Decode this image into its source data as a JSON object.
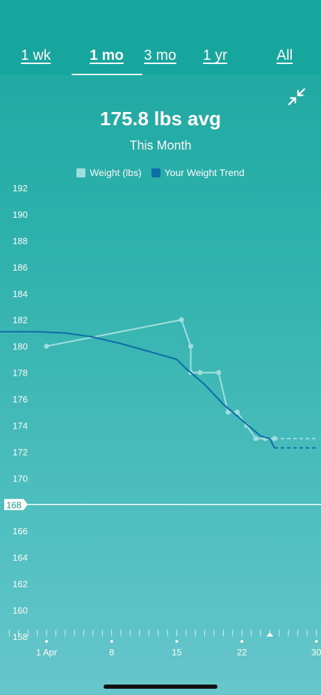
{
  "tabs": [
    {
      "label": "1 wk",
      "active": false
    },
    {
      "label": "1 mo",
      "active": true
    },
    {
      "label": "3 mo",
      "active": false
    },
    {
      "label": "1 yr",
      "active": false
    },
    {
      "label": "All",
      "active": false
    }
  ],
  "icons": {
    "collapse": "collapse-arrows-icon"
  },
  "summary": {
    "headline": "175.8 lbs avg",
    "period": "This Month"
  },
  "colors": {
    "weight": "#9fdedd",
    "trend": "#0f6fa6",
    "goal_line": "#ffffff"
  },
  "chart_data": {
    "type": "line",
    "title": "175.8 lbs avg",
    "subtitle": "This Month",
    "legend": {
      "placement": "top-center"
    },
    "ylim": [
      158,
      192
    ],
    "y_ticks": [
      "192",
      "190",
      "188",
      "186",
      "184",
      "182",
      "180",
      "178",
      "176",
      "174",
      "172",
      "170",
      "168",
      "166",
      "164",
      "162",
      "160",
      "158"
    ],
    "x_tick_labels": [
      {
        "day": 1,
        "label": "1 Apr"
      },
      {
        "day": 8,
        "label": "8"
      },
      {
        "day": 15,
        "label": "15"
      },
      {
        "day": 22,
        "label": "22"
      },
      {
        "day": 30,
        "label": "30"
      }
    ],
    "xlim": [
      -4,
      30.5
    ],
    "goal": {
      "value": 168,
      "label": "168"
    },
    "today_marker_day": 25,
    "series": [
      {
        "name": "Weight (lbs)",
        "points": [
          [
            1,
            180
          ],
          [
            15.5,
            182
          ],
          [
            16.5,
            180
          ],
          [
            16.5,
            178
          ],
          [
            17.5,
            178
          ],
          [
            19.5,
            178
          ],
          [
            20.5,
            175
          ],
          [
            21.5,
            175
          ],
          [
            22.5,
            174
          ],
          [
            23.5,
            173
          ],
          [
            24.5,
            173
          ],
          [
            25.5,
            173
          ]
        ],
        "projection": [
          [
            25.5,
            173
          ],
          [
            30,
            173
          ]
        ]
      },
      {
        "name": "Your Weight Trend",
        "points": [
          [
            -6,
            181.1
          ],
          [
            0,
            181.1
          ],
          [
            3,
            181.0
          ],
          [
            6,
            180.7
          ],
          [
            9,
            180.2
          ],
          [
            12,
            179.6
          ],
          [
            15,
            179.0
          ],
          [
            16,
            178.3
          ],
          [
            18,
            177.1
          ],
          [
            20,
            175.6
          ],
          [
            22,
            174.4
          ],
          [
            23,
            173.8
          ],
          [
            24,
            173.2
          ],
          [
            25,
            173.0
          ],
          [
            25.5,
            172.3
          ]
        ],
        "projection": [
          [
            25.5,
            172.3
          ],
          [
            30,
            172.3
          ]
        ]
      }
    ]
  }
}
